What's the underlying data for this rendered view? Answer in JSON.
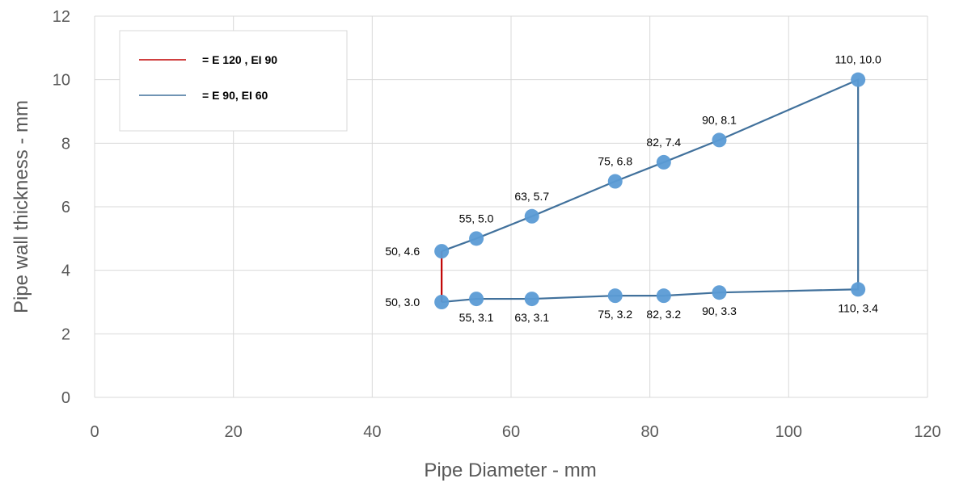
{
  "chart_data": {
    "type": "scatter",
    "xlabel": "Pipe Diameter - mm",
    "ylabel": "Pipe wall thickness - mm",
    "xlim": [
      0,
      120
    ],
    "ylim": [
      0,
      12
    ],
    "xticks": [
      0,
      20,
      40,
      60,
      80,
      100,
      120
    ],
    "yticks": [
      0,
      2,
      4,
      6,
      8,
      10,
      12
    ],
    "grid": true,
    "legend_position": "top-left",
    "legend": [
      {
        "label": "= E 120 , EI 90",
        "color": "#C00000"
      },
      {
        "label": "= E 90, EI 60",
        "color": "#41719C"
      }
    ],
    "points": [
      {
        "x": 50,
        "y": 3.0,
        "label": "50, 3.0"
      },
      {
        "x": 55,
        "y": 3.1,
        "label": "55, 3.1"
      },
      {
        "x": 63,
        "y": 3.1,
        "label": "63, 3.1"
      },
      {
        "x": 75,
        "y": 3.2,
        "label": "75, 3.2"
      },
      {
        "x": 82,
        "y": 3.2,
        "label": "82, 3.2"
      },
      {
        "x": 90,
        "y": 3.3,
        "label": "90, 3.3"
      },
      {
        "x": 110,
        "y": 3.4,
        "label": "110, 3.4"
      },
      {
        "x": 50,
        "y": 4.6,
        "label": "50, 4.6"
      },
      {
        "x": 55,
        "y": 5.0,
        "label": "55, 5.0"
      },
      {
        "x": 63,
        "y": 5.7,
        "label": "63, 5.7"
      },
      {
        "x": 75,
        "y": 6.8,
        "label": "75, 6.8"
      },
      {
        "x": 82,
        "y": 7.4,
        "label": "82, 7.4"
      },
      {
        "x": 90,
        "y": 8.1,
        "label": "90, 8.1"
      },
      {
        "x": 110,
        "y": 10.0,
        "label": "110, 10.0"
      }
    ],
    "series": [
      {
        "color": "#41719C",
        "x": [
          50,
          55,
          63,
          75,
          82,
          90,
          110,
          110,
          90,
          82,
          75,
          63,
          55,
          50
        ],
        "y": [
          3.0,
          3.1,
          3.1,
          3.2,
          3.2,
          3.3,
          3.4,
          10.0,
          8.1,
          7.4,
          6.8,
          5.7,
          5.0,
          4.6
        ]
      },
      {
        "color": "#C00000",
        "x": [
          50,
          50
        ],
        "y": [
          3.0,
          4.6
        ]
      }
    ],
    "marker_color": "#5B9BD5"
  }
}
